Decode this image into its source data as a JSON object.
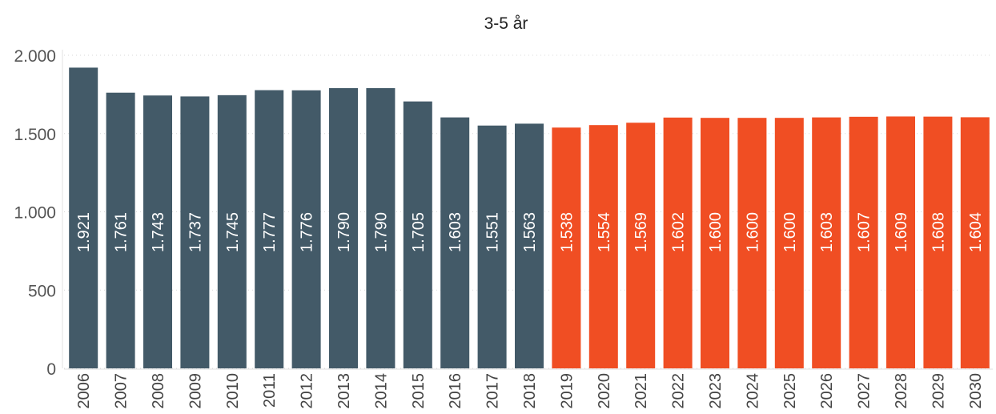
{
  "chart_data": {
    "type": "bar",
    "title": "3-5 år",
    "xlabel": "",
    "ylabel": "",
    "ylim": [
      0,
      2000
    ],
    "yticks": [
      0,
      500,
      1000,
      1500,
      2000
    ],
    "ytick_labels": [
      "0",
      "500",
      "1.000",
      "1.500",
      "2.000"
    ],
    "grid": true,
    "categories": [
      "2006",
      "2007",
      "2008",
      "2009",
      "2010",
      "2011",
      "2012",
      "2013",
      "2014",
      "2015",
      "2016",
      "2017",
      "2018",
      "2019",
      "2020",
      "2021",
      "2022",
      "2023",
      "2024",
      "2025",
      "2026",
      "2027",
      "2028",
      "2029",
      "2030"
    ],
    "values": [
      1921,
      1761,
      1743,
      1737,
      1745,
      1777,
      1776,
      1790,
      1790,
      1705,
      1603,
      1551,
      1563,
      1538,
      1554,
      1569,
      1602,
      1600,
      1600,
      1600,
      1603,
      1607,
      1609,
      1608,
      1604
    ],
    "value_labels": [
      "1.921",
      "1.761",
      "1.743",
      "1.737",
      "1.745",
      "1.777",
      "1.776",
      "1.790",
      "1.790",
      "1.705",
      "1.603",
      "1.551",
      "1.563",
      "1.538",
      "1.554",
      "1.569",
      "1.602",
      "1.600",
      "1.600",
      "1.600",
      "1.603",
      "1.607",
      "1.609",
      "1.608",
      "1.604"
    ],
    "colors": {
      "historical": "#435a68",
      "forecast": "#f04e23"
    },
    "forecast_start_index": 13
  }
}
